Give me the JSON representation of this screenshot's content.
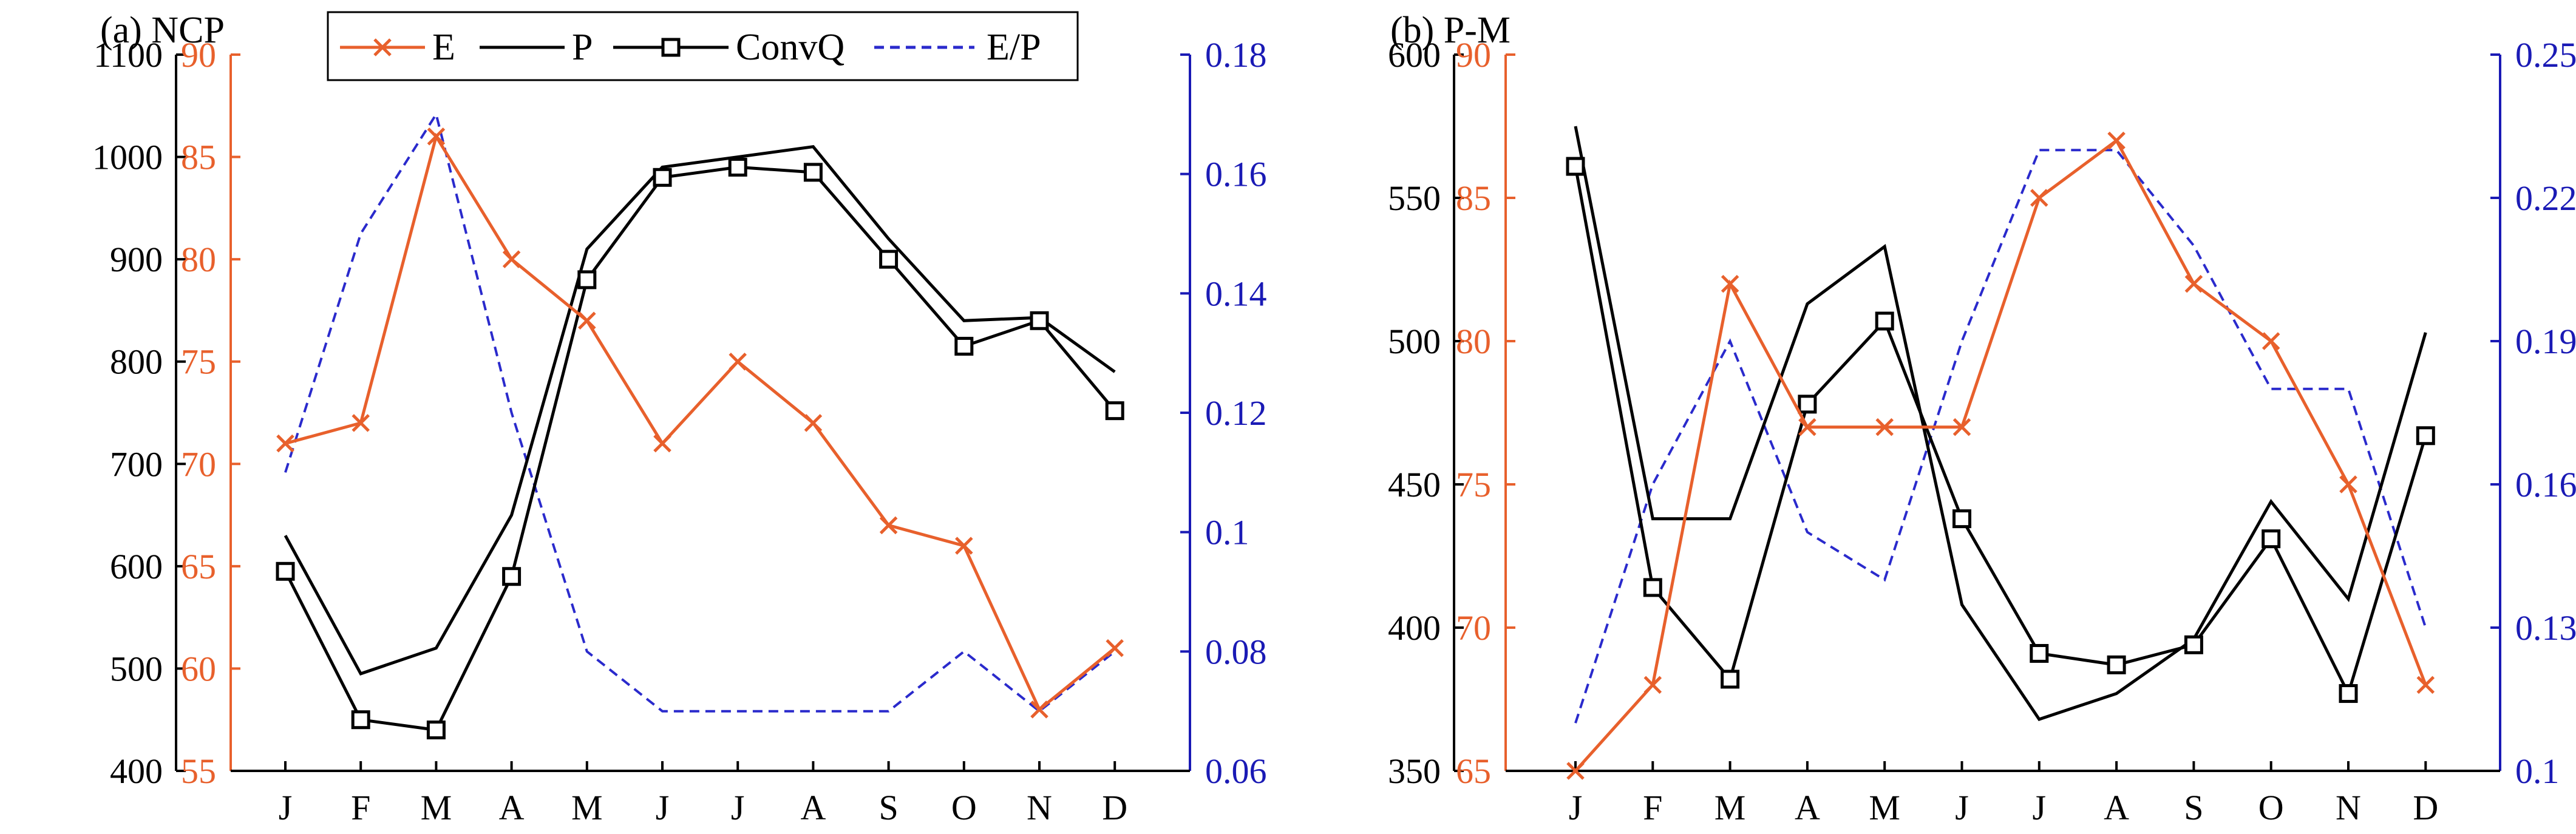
{
  "colors": {
    "e_axis": "#E8602C",
    "ratio_axis": "#1A1AB5",
    "black": "#000000",
    "e_series": "#E8602C",
    "p_series": "#000000",
    "convq_series": "#000000",
    "ratio_series": "#2A2ACC"
  },
  "legend": {
    "e": "E",
    "p": "P",
    "convq": "ConvQ",
    "ratio": "E/P"
  },
  "chart_data": [
    {
      "type": "line",
      "title": "(a) NCP",
      "categories": [
        "J",
        "F",
        "M",
        "A",
        "M",
        "J",
        "J",
        "A",
        "S",
        "O",
        "N",
        "D"
      ],
      "axes": {
        "left_outer": {
          "ylim": [
            400,
            1100
          ],
          "ticks": [
            400,
            500,
            600,
            700,
            800,
            900,
            1000,
            1100
          ],
          "tick_labels": [
            "400",
            "500",
            "600",
            "700",
            "800",
            "900",
            "1000",
            "1100"
          ],
          "series": [
            "P",
            "ConvQ"
          ]
        },
        "left_inner": {
          "ylim": [
            55,
            90
          ],
          "ticks": [
            55,
            60,
            65,
            70,
            75,
            80,
            85,
            90
          ],
          "tick_labels": [
            "55",
            "60",
            "65",
            "70",
            "75",
            "80",
            "85",
            "90"
          ],
          "series": [
            "E"
          ]
        },
        "right": {
          "ylim": [
            0.06,
            0.18
          ],
          "ticks": [
            0.06,
            0.08,
            0.1,
            0.12,
            0.14,
            0.16,
            0.18
          ],
          "tick_labels": [
            "0.06",
            "0.08",
            "0.1",
            "0.12",
            "0.14",
            "0.16",
            "0.18"
          ],
          "series": [
            "E/P"
          ]
        }
      },
      "series": [
        {
          "name": "E",
          "axis": "left_inner",
          "marker": "x",
          "values": [
            71,
            72,
            86,
            80,
            77,
            71,
            75,
            72,
            67,
            66,
            58,
            61
          ]
        },
        {
          "name": "P",
          "axis": "left_outer",
          "marker": "none",
          "values": [
            630,
            495,
            520,
            650,
            910,
            990,
            1000,
            1010,
            920,
            840,
            843,
            790
          ]
        },
        {
          "name": "ConvQ",
          "axis": "left_outer",
          "marker": "square",
          "values": [
            595,
            450,
            440,
            590,
            880,
            980,
            990,
            985,
            900,
            815,
            840,
            752
          ]
        },
        {
          "name": "E/P",
          "axis": "right",
          "marker": "none",
          "dashed": true,
          "values": [
            0.11,
            0.15,
            0.17,
            0.12,
            0.08,
            0.07,
            0.07,
            0.07,
            0.07,
            0.08,
            0.07,
            0.08
          ]
        }
      ]
    },
    {
      "type": "line",
      "title": "(b) P-M",
      "categories": [
        "J",
        "F",
        "M",
        "A",
        "M",
        "J",
        "J",
        "A",
        "S",
        "O",
        "N",
        "D"
      ],
      "axes": {
        "left_outer": {
          "ylim": [
            350,
            600
          ],
          "ticks": [
            350,
            400,
            450,
            500,
            550,
            600
          ],
          "tick_labels": [
            "350",
            "400",
            "450",
            "500",
            "550",
            "600"
          ],
          "series": [
            "P",
            "ConvQ"
          ]
        },
        "left_inner": {
          "ylim": [
            65,
            90
          ],
          "ticks": [
            65,
            70,
            75,
            80,
            85,
            90
          ],
          "tick_labels": [
            "65",
            "70",
            "75",
            "80",
            "85",
            "90"
          ],
          "series": [
            "E"
          ]
        },
        "right": {
          "ylim": [
            0.1,
            0.25
          ],
          "ticks": [
            0.1,
            0.13,
            0.16,
            0.19,
            0.22,
            0.25
          ],
          "tick_labels": [
            "0.1",
            "0.13",
            "0.16",
            "0.19",
            "0.22",
            "0.25"
          ],
          "series": [
            "E/P"
          ]
        }
      },
      "series": [
        {
          "name": "E",
          "axis": "left_inner",
          "marker": "x",
          "values": [
            65,
            68,
            82,
            77,
            77,
            77,
            85,
            87,
            82,
            80,
            75,
            68
          ]
        },
        {
          "name": "P",
          "axis": "left_outer",
          "marker": "none",
          "values": [
            575,
            438,
            438,
            513,
            533,
            408,
            368,
            377,
            396,
            444,
            410,
            503
          ]
        },
        {
          "name": "ConvQ",
          "axis": "left_outer",
          "marker": "square",
          "values": [
            561,
            414,
            382,
            478,
            507,
            438,
            391,
            387,
            394,
            431,
            377,
            467
          ]
        },
        {
          "name": "E/P",
          "axis": "right",
          "marker": "none",
          "dashed": true,
          "values": [
            0.11,
            0.16,
            0.19,
            0.15,
            0.14,
            0.19,
            0.23,
            0.23,
            0.21,
            0.18,
            0.18,
            0.13
          ]
        }
      ]
    }
  ]
}
